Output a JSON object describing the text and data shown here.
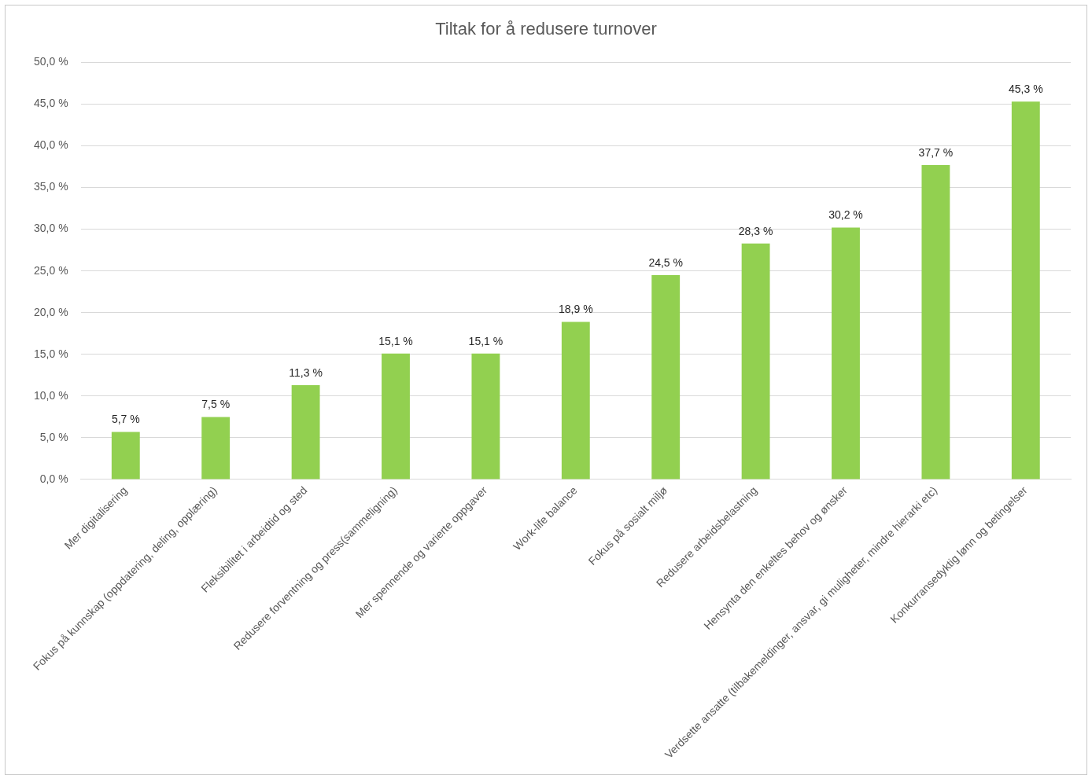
{
  "chart_data": {
    "type": "bar",
    "title": "Tiltak for å redusere turnover",
    "categories": [
      "Mer digitalisering",
      "Fokus på kunnskap (oppdatering, deling, opplæring)",
      "Fleksibilitet i arbeidtid og sted",
      "Redusere forventning og press(sammeligning)",
      "Mer spennende og varierte oppgaver",
      "Work-life balance",
      "Fokus på sosialt miljø",
      "Redusere arbeidsbelastning",
      "Hensynta den enkeltes behov og ønsker",
      "Verdsette ansatte (tilbakemeldinger, ansvar, gi muligheter, mindre hierarki etc)",
      "Konkurransedyktig lønn og betingelser"
    ],
    "values": [
      5.7,
      7.5,
      11.3,
      15.1,
      15.1,
      18.9,
      24.5,
      28.3,
      30.2,
      37.7,
      45.3
    ],
    "value_labels": [
      "5,7 %",
      "7,5 %",
      "11,3 %",
      "15,1 %",
      "15,1 %",
      "18,9 %",
      "24,5 %",
      "28,3 %",
      "30,2 %",
      "37,7 %",
      "45,3 %"
    ],
    "color": "#92d050",
    "ylim": [
      0,
      50
    ],
    "yticks": [
      {
        "value": 0,
        "label": "0,0 %"
      },
      {
        "value": 5,
        "label": "5,0 %"
      },
      {
        "value": 10,
        "label": "10,0 %"
      },
      {
        "value": 15,
        "label": "15,0 %"
      },
      {
        "value": 20,
        "label": "20,0 %"
      },
      {
        "value": 25,
        "label": "25,0 %"
      },
      {
        "value": 30,
        "label": "30,0 %"
      },
      {
        "value": 35,
        "label": "35,0 %"
      },
      {
        "value": 40,
        "label": "40,0 %"
      },
      {
        "value": 45,
        "label": "45,0 %"
      },
      {
        "value": 50,
        "label": "50,0 %"
      }
    ],
    "grid": "y",
    "legend": false
  }
}
